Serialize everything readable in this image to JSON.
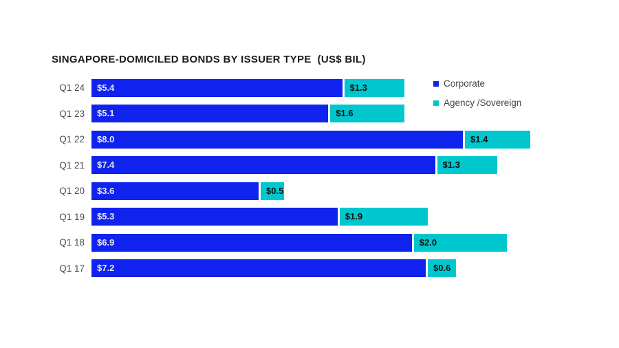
{
  "title": "SINGAPORE-DOMICILED BONDS BY ISSUER TYPE  (US$ BIL)",
  "colors": {
    "corporate": "#0f22ee",
    "agency_sovereign": "#00c7ce",
    "background": "#ffffff",
    "category_text": "#4d4d4d",
    "title_text": "#1a1a1a"
  },
  "legend": [
    {
      "label": "Corporate",
      "color": "#0f22ee"
    },
    {
      "label": "Agency /Sovereign",
      "color": "#00c7ce"
    }
  ],
  "chart_data": {
    "type": "bar",
    "orientation": "horizontal",
    "stacked": true,
    "title": "SINGAPORE-DOMICILED BONDS BY ISSUER TYPE  (US$ BIL)",
    "xlabel": "",
    "ylabel": "",
    "xlim": [
      0,
      10
    ],
    "grid": false,
    "legend_position": "top-right",
    "value_prefix": "$",
    "categories": [
      "Q1 24",
      "Q1 23",
      "Q1 22",
      "Q1 21",
      "Q1 20",
      "Q1 19",
      "Q1 18",
      "Q1 17"
    ],
    "series": [
      {
        "name": "Corporate",
        "color": "#0f22ee",
        "values": [
          5.4,
          5.1,
          8.0,
          7.4,
          3.6,
          5.3,
          6.9,
          7.2
        ],
        "labels": [
          "$5.4",
          "$5.1",
          "$8.0",
          "$7.4",
          "$3.6",
          "$5.3",
          "$6.9",
          "$7.2"
        ]
      },
      {
        "name": "Agency /Sovereign",
        "color": "#00c7ce",
        "values": [
          1.3,
          1.6,
          1.4,
          1.3,
          0.5,
          1.9,
          2.0,
          0.6
        ],
        "labels": [
          "$1.3",
          "$1.6",
          "$1.4",
          "$1.3",
          "$0.5",
          "$1.9",
          "$2.0",
          "$0.6"
        ]
      }
    ]
  }
}
